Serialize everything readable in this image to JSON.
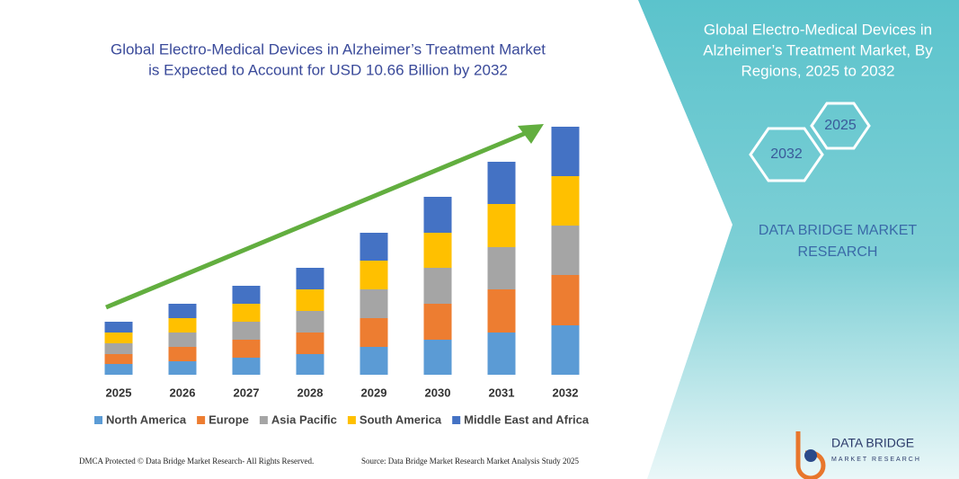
{
  "chart_data": {
    "type": "bar",
    "stacked": true,
    "title": [
      "Global Electro-Medical Devices in Alzheimer’s Treatment Market",
      "is Expected to Account for USD 10.66 Billion by 2032"
    ],
    "categories": [
      "2025",
      "2026",
      "2027",
      "2028",
      "2029",
      "2030",
      "2031",
      "2032"
    ],
    "series": [
      {
        "name": "North America",
        "color": "#5b9bd5",
        "values": [
          12,
          15,
          19,
          23,
          31,
          39,
          47,
          55
        ]
      },
      {
        "name": "Europe",
        "color": "#ed7d31",
        "values": [
          11,
          16,
          20,
          24,
          32,
          40,
          48,
          56
        ]
      },
      {
        "name": "Asia Pacific",
        "color": "#a5a5a5",
        "values": [
          12,
          16,
          20,
          24,
          32,
          40,
          47,
          55
        ]
      },
      {
        "name": "South America",
        "color": "#ffc000",
        "values": [
          12,
          16,
          20,
          24,
          32,
          39,
          48,
          55
        ]
      },
      {
        "name": "Middle East and Africa",
        "color": "#4472c4",
        "values": [
          12,
          16,
          20,
          24,
          31,
          40,
          47,
          55
        ]
      }
    ]
  },
  "panel": {
    "title": [
      "Global Electro-Medical Devices in",
      "Alzheimer’s Treatment Market, By",
      "Regions, 2025 to 2032"
    ],
    "hexagons": [
      "2032",
      "2025"
    ],
    "brand": [
      "DATA BRIDGE MARKET",
      "RESEARCH"
    ]
  },
  "footer": {
    "left": "DMCA Protected © Data Bridge Market Research- All Rights Reserved.",
    "right": "Source: Data Bridge Market Research Market Analysis Study 2025"
  },
  "logo": {
    "name": "DATA BRIDGE",
    "tagline": "MARKET RESEARCH"
  }
}
